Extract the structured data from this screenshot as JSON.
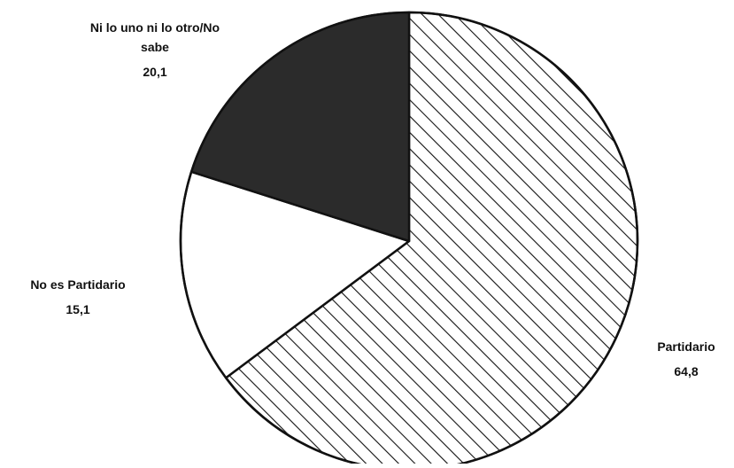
{
  "chart_data": {
    "type": "pie",
    "title": "",
    "slices": [
      {
        "name": "Partidario",
        "label_lines": [
          "Partidario"
        ],
        "value": 64.8,
        "value_label": "64,8",
        "fill": "hatch"
      },
      {
        "name": "No es Partidario",
        "label_lines": [
          "No es Partidario"
        ],
        "value": 15.1,
        "value_label": "15,1",
        "fill": "#ffffff"
      },
      {
        "name": "Ni lo uno ni lo otro/No sabe",
        "label_lines": [
          "Ni lo uno ni lo otro/No",
          "sabe"
        ],
        "value": 20.1,
        "value_label": "20,1",
        "fill": "#2b2b2b"
      }
    ],
    "start_angle_deg": 0,
    "direction": "clockwise",
    "legend": "none",
    "colors": {
      "outline": "#111111",
      "hatch_line": "#111111",
      "dark_fill": "#2b2b2b",
      "light_fill": "#ffffff"
    }
  }
}
